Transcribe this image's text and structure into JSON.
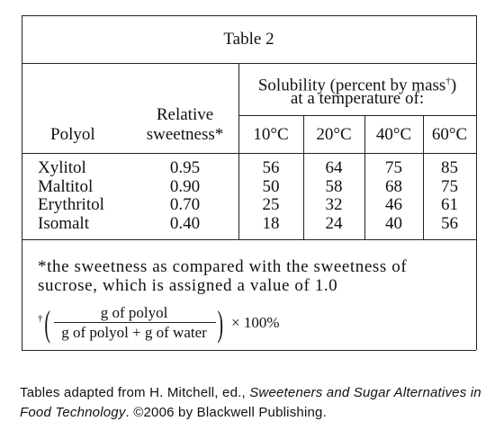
{
  "title": "Table 2",
  "header": {
    "polyol": "Polyol",
    "sweetness": [
      "Relative",
      "sweetness*"
    ],
    "solubility": [
      "Solubility (percent by mass",
      "†",
      ")",
      "at a temperature of:"
    ],
    "temperatures": [
      "10°C",
      "20°C",
      "40°C",
      "60°C"
    ]
  },
  "rows": [
    [
      "Xylitol",
      "0.95",
      "56",
      "64",
      "75",
      "85"
    ],
    [
      "Maltitol",
      "0.90",
      "50",
      "58",
      "68",
      "75"
    ],
    [
      "Erythritol",
      "0.70",
      "25",
      "32",
      "46",
      "61"
    ],
    [
      "Isomalt",
      "0.40",
      "18",
      "24",
      "40",
      "56"
    ]
  ],
  "footnote": [
    "*the sweetness as compared with the sweetness of",
    "sucrose, which is assigned a value of 1.0"
  ],
  "formula": {
    "dagger": "†",
    "numerator": "g of polyol",
    "denominator": "g of polyol + g of water",
    "multiplier": "× 100%"
  },
  "caption": [
    "Tables adapted from H. Mitchell, ed., ",
    "Sweeteners and Sugar Alternatives in Food Technology",
    ". ©2006 by Blackwell Publishing."
  ]
}
